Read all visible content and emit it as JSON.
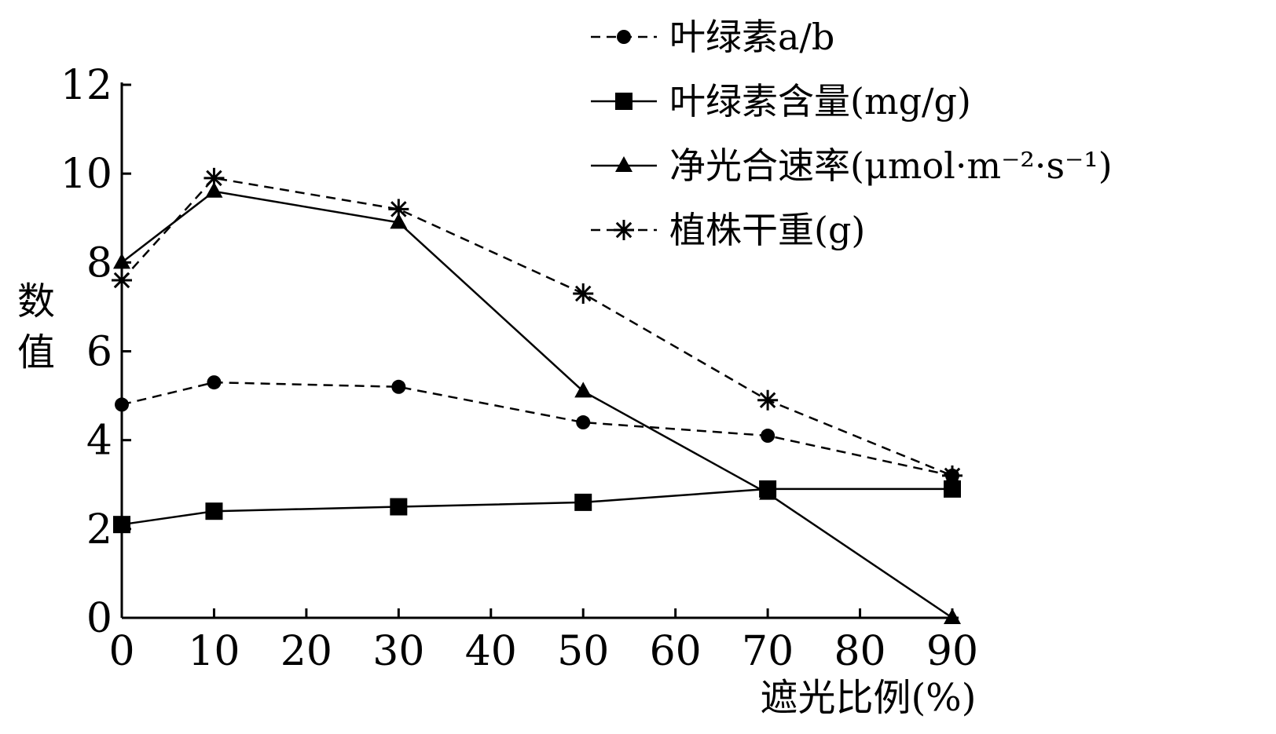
{
  "chart_data": {
    "type": "line",
    "xlabel": "遮光比例(%)",
    "ylabel": "数值",
    "x_ticks": [
      "0",
      "10",
      "20",
      "30",
      "40",
      "50",
      "60",
      "70",
      "80",
      "90"
    ],
    "y_ticks": [
      "0",
      "2",
      "4",
      "6",
      "8",
      "10",
      "12"
    ],
    "xlim": [
      0,
      90
    ],
    "ylim": [
      0,
      12
    ],
    "grid": false,
    "legend_position": "top-right",
    "x": [
      0,
      10,
      30,
      50,
      70,
      90
    ],
    "series": [
      {
        "name": "叶绿素a/b",
        "marker": "circle",
        "line_style": "dashed",
        "color": "#000000",
        "values": [
          4.8,
          5.3,
          5.2,
          4.4,
          4.1,
          3.2
        ]
      },
      {
        "name": "叶绿素含量(mg/g)",
        "marker": "square",
        "line_style": "solid",
        "color": "#000000",
        "values": [
          2.1,
          2.4,
          2.5,
          2.6,
          2.9,
          2.9
        ]
      },
      {
        "name": "净光合速率(μmol·m⁻²·s⁻¹)",
        "marker": "triangle",
        "line_style": "solid",
        "color": "#000000",
        "values": [
          8.0,
          9.6,
          8.9,
          5.1,
          2.8,
          0.0
        ]
      },
      {
        "name": "植株干重(g)",
        "marker": "asterisk",
        "line_style": "dashed",
        "color": "#000000",
        "values": [
          7.6,
          9.9,
          9.2,
          7.3,
          4.9,
          3.2
        ]
      }
    ]
  }
}
